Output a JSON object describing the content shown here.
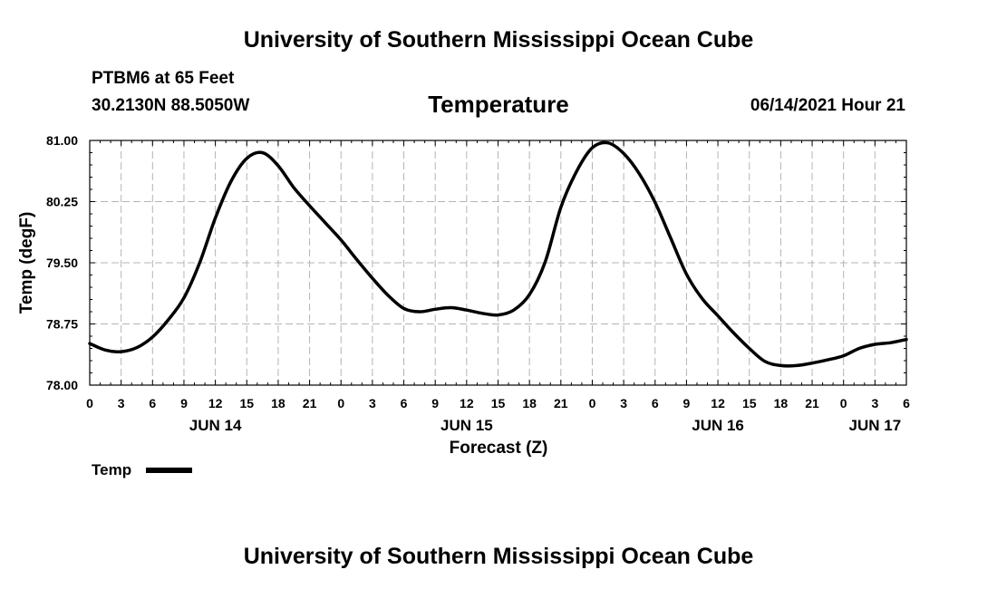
{
  "header": {
    "top_title": "University of Southern Mississippi Ocean Cube",
    "station": "PTBM6 at 65 Feet",
    "coords": "30.2130N  88.5050W",
    "date": "06/14/2021 Hour 21"
  },
  "footer": {
    "bottom_title": "University of Southern Mississippi Ocean Cube"
  },
  "legend": {
    "label": "Temp"
  },
  "colors": {
    "line": "#000000",
    "grid": "#b4b4b4"
  },
  "chart_data": {
    "type": "line",
    "title": "Temperature",
    "xlabel": "Forecast (Z)",
    "ylabel": "Temp (degF)",
    "xlim": [
      0,
      78
    ],
    "ylim": [
      78.0,
      81.0
    ],
    "yticks": [
      "78.00",
      "78.75",
      "79.50",
      "80.25",
      "81.00"
    ],
    "xtick_labels": [
      "0",
      "3",
      "6",
      "9",
      "12",
      "15",
      "18",
      "21",
      "0",
      "3",
      "6",
      "9",
      "12",
      "15",
      "18",
      "21",
      "0",
      "3",
      "6",
      "9",
      "12",
      "15",
      "18",
      "21",
      "0",
      "3",
      "6"
    ],
    "day_labels": [
      {
        "label": "JUN 14",
        "hour": 12
      },
      {
        "label": "JUN 15",
        "hour": 36
      },
      {
        "label": "JUN 16",
        "hour": 60
      },
      {
        "label": "JUN 17",
        "hour": 75
      }
    ],
    "grid": true,
    "series": [
      {
        "name": "Temp",
        "x": [
          0,
          1.5,
          3,
          4.5,
          6,
          7.5,
          9,
          10.5,
          12,
          13.5,
          15,
          16.5,
          18,
          19.5,
          21,
          22.5,
          24,
          25.5,
          27,
          28.5,
          30,
          31.5,
          33,
          34.5,
          36,
          37.5,
          39,
          40.5,
          42,
          43.5,
          45,
          46.5,
          48,
          49.5,
          51,
          52.5,
          54,
          55.5,
          57,
          58.5,
          60,
          61.5,
          63,
          64.5,
          66,
          67.5,
          69,
          70.5,
          72,
          73.5,
          75,
          76.5,
          78
        ],
        "values": [
          78.51,
          78.43,
          78.41,
          78.46,
          78.59,
          78.8,
          79.07,
          79.5,
          80.05,
          80.5,
          80.78,
          80.85,
          80.69,
          80.42,
          80.2,
          79.99,
          79.78,
          79.54,
          79.31,
          79.1,
          78.94,
          78.9,
          78.93,
          78.95,
          78.92,
          78.88,
          78.86,
          78.92,
          79.11,
          79.51,
          80.18,
          80.62,
          80.91,
          80.97,
          80.84,
          80.59,
          80.24,
          79.8,
          79.36,
          79.06,
          78.85,
          78.64,
          78.45,
          78.29,
          78.24,
          78.24,
          78.27,
          78.31,
          78.36,
          78.45,
          78.5,
          78.52,
          78.56
        ]
      }
    ]
  }
}
